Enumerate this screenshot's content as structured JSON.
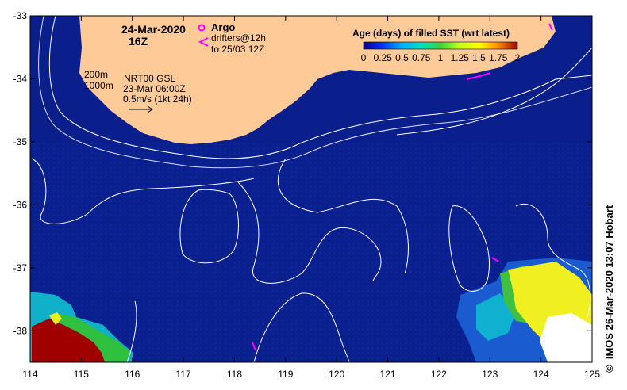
{
  "map": {
    "date": "24-Mar-2020",
    "hour": "16Z",
    "credit": "IMOS 26-Mar-2020 13:07 Hobart",
    "copyright_symbol": "©",
    "colors": {
      "ocean": "#0a1e8c",
      "land": "#fecb98",
      "contour": "#ffffff",
      "argo": "#ff00ff",
      "drifter": "#ff00ff"
    },
    "legend": {
      "argo_label": "Argo",
      "drifters_label": "drifters@12h",
      "drifters_sub": "to 25/03 12Z",
      "depth_200": "200m",
      "depth_1000": "1000m",
      "product": "NRT00 GSL",
      "product_time": "23-Mar 06:00Z",
      "scale_vector": "0.5m/s (1kt 24h)"
    },
    "colorbar": {
      "title": "Age (days) of filled SST (wrt latest)",
      "ticks": [
        "0",
        "0.25",
        "0.5",
        "0.75",
        "1",
        "1.25",
        "1.5",
        "1.75",
        "2"
      ],
      "stops": [
        "#120080",
        "#0030ff",
        "#00b0ff",
        "#00e0c0",
        "#40d040",
        "#c0ff20",
        "#ffff00",
        "#ff9000",
        "#a00000"
      ]
    },
    "lon_ticks": [
      "114",
      "115",
      "116",
      "117",
      "118",
      "119",
      "120",
      "121",
      "122",
      "123",
      "124",
      "125"
    ],
    "lat_ticks": [
      "-33",
      "-34",
      "-35",
      "-36",
      "-37",
      "-38"
    ],
    "lon_range": [
      114,
      125
    ],
    "lat_range": [
      -38.5,
      -33
    ]
  }
}
